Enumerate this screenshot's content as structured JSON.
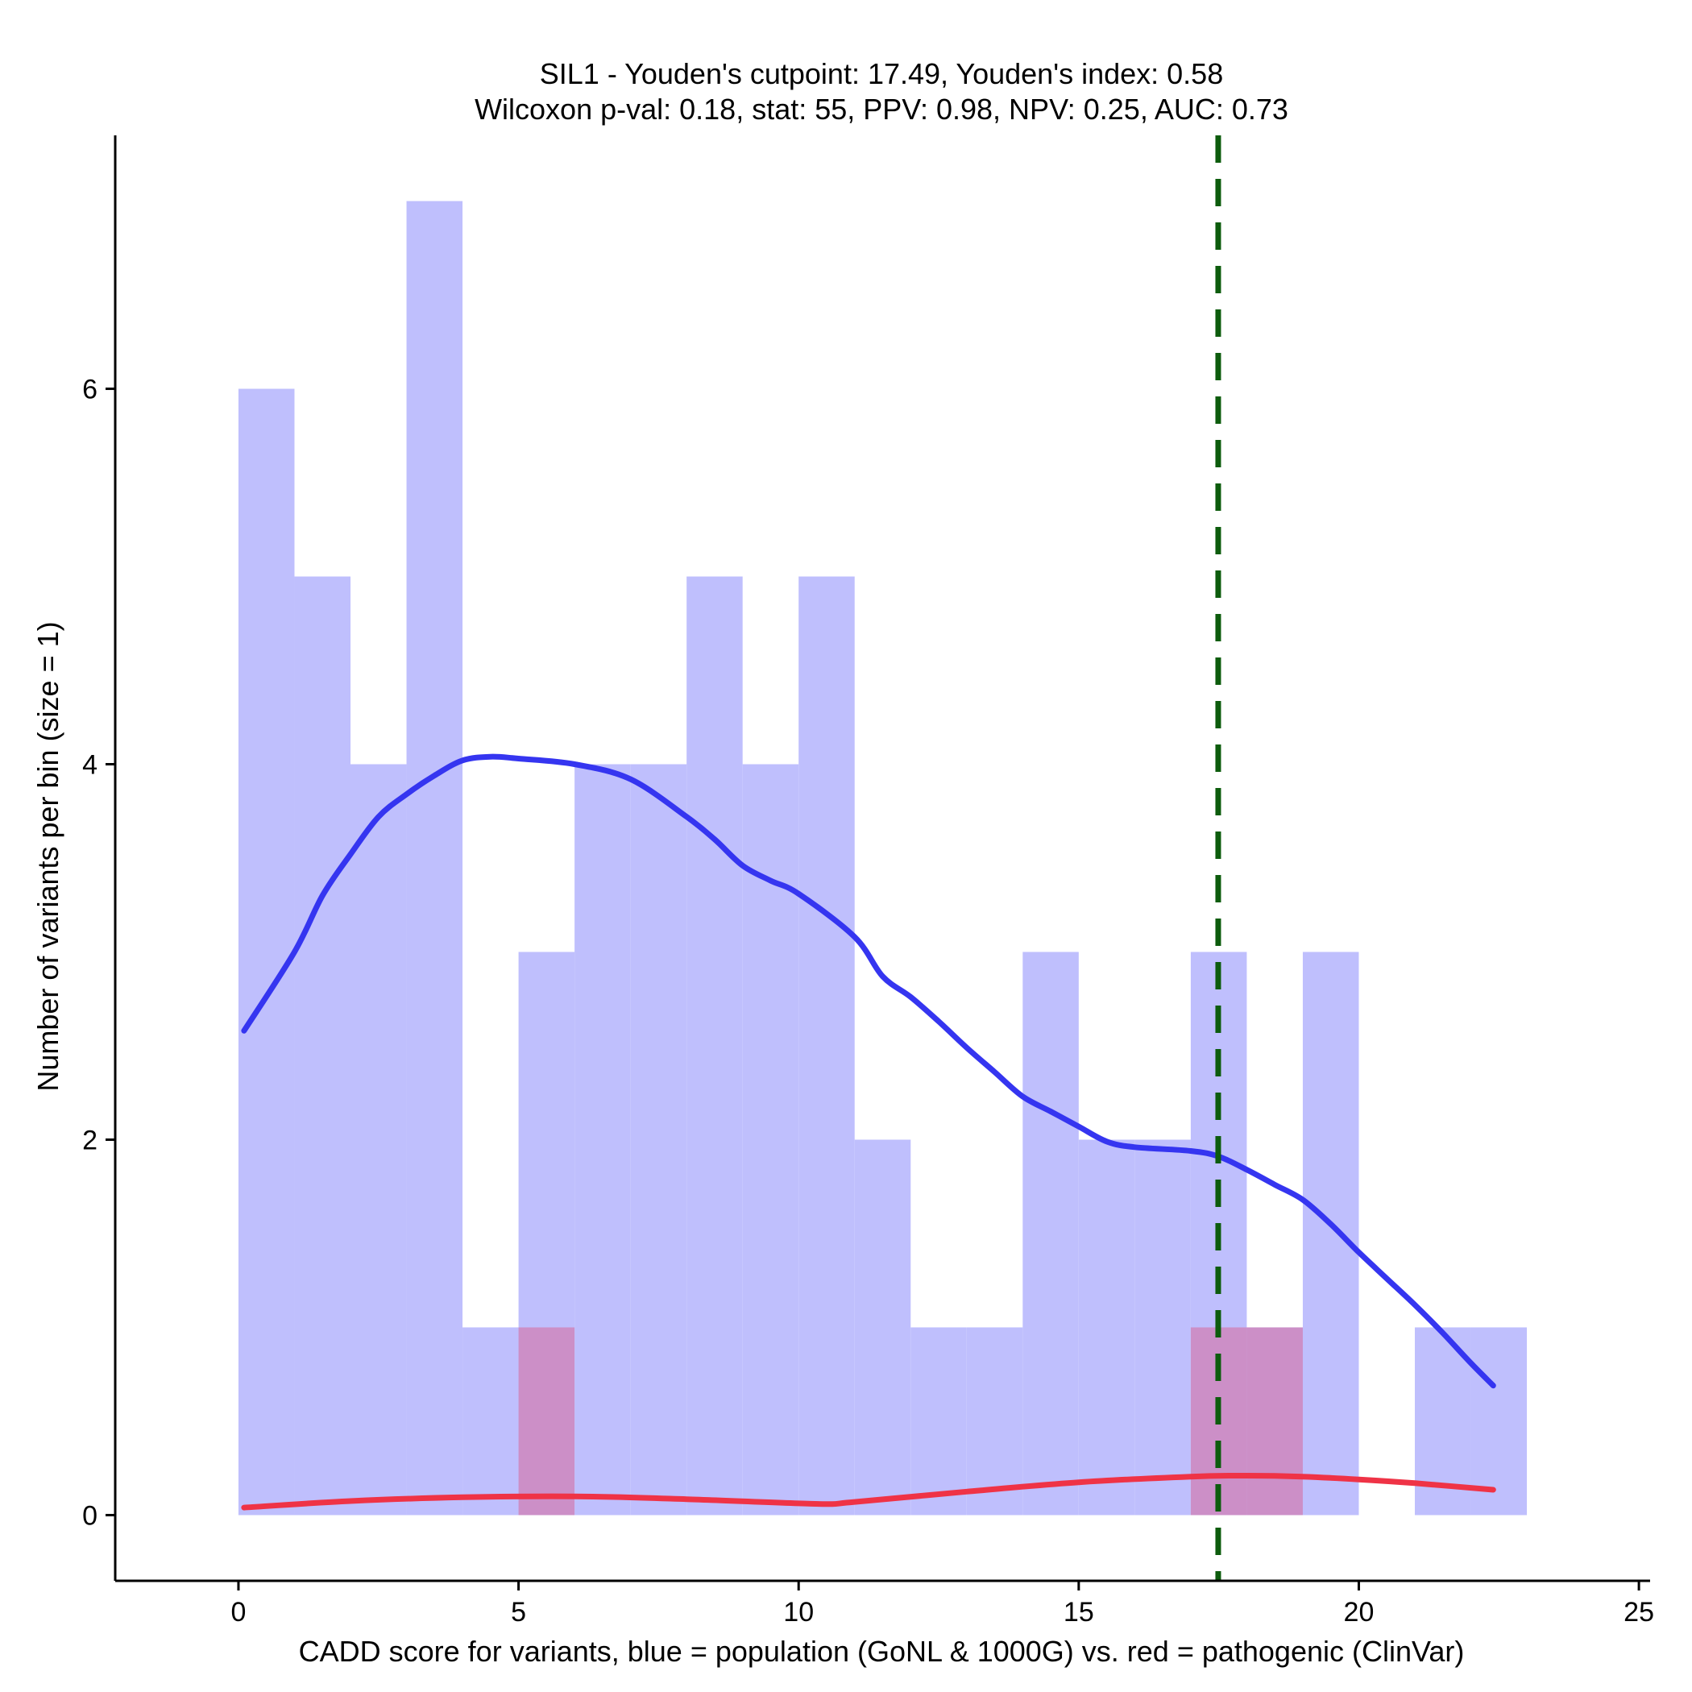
{
  "chart_data": {
    "type": "bar",
    "title_line1": "SIL1 - Youden's cutpoint: 17.49, Youden's index: 0.58",
    "title_line2": "Wilcoxon p-val: 0.18, stat: 55, PPV: 0.98, NPV: 0.25, AUC: 0.73",
    "xlabel": "CADD score for variants, blue = population (GoNL & 1000G) vs. red = pathogenic (ClinVar)",
    "ylabel": "Number of variants per bin (size = 1)",
    "xlim": [
      -2.2,
      25.2
    ],
    "ylim": [
      -0.35,
      7.35
    ],
    "xticks": [
      0,
      5,
      10,
      15,
      20,
      25
    ],
    "xtick_labels": [
      "0",
      "5",
      "10",
      "15",
      "20",
      "25"
    ],
    "yticks": [
      0,
      2,
      4,
      6
    ],
    "ytick_labels": [
      "0",
      "2",
      "4",
      "6"
    ],
    "bin_size": 1,
    "population_histogram": {
      "name": "population (GoNL & 1000G)",
      "color": "#bfbffd",
      "bins": [
        {
          "start": 0,
          "count": 6
        },
        {
          "start": 1,
          "count": 5
        },
        {
          "start": 2,
          "count": 4
        },
        {
          "start": 3,
          "count": 7
        },
        {
          "start": 4,
          "count": 1
        },
        {
          "start": 5,
          "count": 3
        },
        {
          "start": 6,
          "count": 4
        },
        {
          "start": 7,
          "count": 4
        },
        {
          "start": 8,
          "count": 5
        },
        {
          "start": 9,
          "count": 4
        },
        {
          "start": 10,
          "count": 5
        },
        {
          "start": 11,
          "count": 2
        },
        {
          "start": 12,
          "count": 1
        },
        {
          "start": 13,
          "count": 1
        },
        {
          "start": 14,
          "count": 3
        },
        {
          "start": 15,
          "count": 2
        },
        {
          "start": 16,
          "count": 2
        },
        {
          "start": 17,
          "count": 3
        },
        {
          "start": 18,
          "count": 1
        },
        {
          "start": 19,
          "count": 3
        },
        {
          "start": 20,
          "count": 0
        },
        {
          "start": 21,
          "count": 1
        },
        {
          "start": 22,
          "count": 1
        }
      ]
    },
    "pathogenic_histogram": {
      "name": "pathogenic (ClinVar)",
      "color": "#cc8fc7",
      "bins": [
        {
          "start": 5,
          "count": 1
        },
        {
          "start": 17,
          "count": 1
        },
        {
          "start": 18,
          "count": 1
        }
      ]
    },
    "population_density": {
      "name": "population density (scaled)",
      "color": "#3535f0",
      "x": [
        0.1,
        1,
        1.5,
        2,
        2.5,
        3,
        3.5,
        4,
        4.5,
        5,
        6,
        7,
        8,
        8.5,
        9,
        9.5,
        10,
        11,
        11.5,
        12,
        12.5,
        13,
        13.5,
        14,
        14.5,
        15,
        15.5,
        16,
        17,
        17.5,
        18,
        18.5,
        19,
        19.5,
        20,
        20.5,
        21,
        21.5,
        22,
        22.4
      ],
      "y": [
        2.58,
        3.0,
        3.3,
        3.52,
        3.72,
        3.84,
        3.94,
        4.02,
        4.04,
        4.03,
        4.0,
        3.92,
        3.72,
        3.6,
        3.46,
        3.38,
        3.31,
        3.08,
        2.87,
        2.76,
        2.63,
        2.49,
        2.36,
        2.23,
        2.15,
        2.07,
        1.99,
        1.96,
        1.94,
        1.91,
        1.84,
        1.76,
        1.68,
        1.55,
        1.4,
        1.26,
        1.12,
        0.97,
        0.81,
        0.69
      ]
    },
    "pathogenic_density": {
      "name": "pathogenic density (scaled)",
      "color": "#ef3346",
      "x": [
        0.1,
        2,
        4,
        6,
        8,
        10.3,
        11,
        13,
        15,
        17,
        18,
        19,
        20,
        21,
        22.4
      ],
      "y": [
        0.04,
        0.075,
        0.095,
        0.1,
        0.085,
        0.06,
        0.07,
        0.125,
        0.175,
        0.205,
        0.21,
        0.205,
        0.19,
        0.17,
        0.135
      ]
    },
    "cutpoint": {
      "label": "Youden's cutpoint",
      "x": 17.49,
      "color": "#0d5c0d"
    }
  }
}
